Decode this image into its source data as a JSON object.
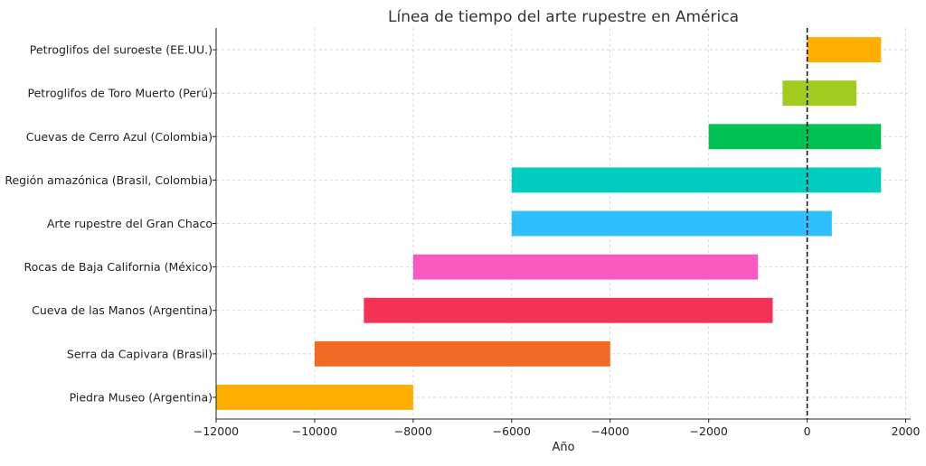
{
  "chart_data": {
    "type": "bar",
    "orientation": "horizontal",
    "title": "Línea de tiempo del arte rupestre en América",
    "xlabel": "Año",
    "ylabel": "",
    "xlim": [
      -12000,
      2100
    ],
    "xticks": [
      -12000,
      -10000,
      -8000,
      -6000,
      -4000,
      -2000,
      0,
      2000
    ],
    "xtick_labels": [
      "−12000",
      "−10000",
      "−8000",
      "−6000",
      "−4000",
      "−2000",
      "0",
      "2000"
    ],
    "grid": true,
    "reference_line": {
      "x": 0,
      "style": "dashed",
      "color": "#000000"
    },
    "categories": [
      "Piedra Museo (Argentina)",
      "Serra da Capivara (Brasil)",
      "Cueva de las Manos (Argentina)",
      "Rocas de Baja California (México)",
      "Arte rupestre del Gran Chaco",
      "Región amazónica (Brasil, Colombia)",
      "Cuevas de Cerro Azul (Colombia)",
      "Petroglifos de Toro Muerto (Perú)",
      "Petroglifos del suroeste (EE.UU.)"
    ],
    "start": [
      -12000,
      -10000,
      -9000,
      -8000,
      -6000,
      -6000,
      -2000,
      -500,
      0
    ],
    "end": [
      -8000,
      -4000,
      -700,
      -1000,
      500,
      1500,
      1500,
      1000,
      1500
    ],
    "colors": [
      "#FFAE00",
      "#F26A22",
      "#F43256",
      "#F95AC2",
      "#2EBFFF",
      "#00CDBF",
      "#00C253",
      "#A0CC1F",
      "#FFAE00"
    ]
  }
}
